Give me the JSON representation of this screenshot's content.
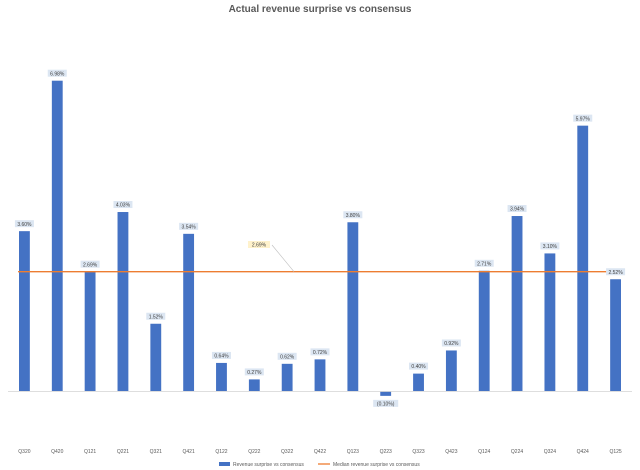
{
  "chart_data": {
    "type": "bar",
    "title": "Actual revenue surprise vs consensus",
    "categories": [
      "Q320",
      "Q420",
      "Q121",
      "Q221",
      "Q321",
      "Q421",
      "Q122",
      "Q222",
      "Q322",
      "Q422",
      "Q123",
      "Q223",
      "Q323",
      "Q423",
      "Q124",
      "Q224",
      "Q324",
      "Q424",
      "Q125"
    ],
    "series": [
      {
        "name": "Revenue surprise vs consensus",
        "type": "bar",
        "color": "#4472c4",
        "values": [
          3.6,
          6.98,
          2.69,
          4.03,
          1.52,
          3.54,
          0.64,
          0.27,
          0.62,
          0.72,
          3.8,
          -0.1,
          0.4,
          0.92,
          2.71,
          3.94,
          3.1,
          5.97,
          2.52
        ],
        "labels": [
          "3.60%",
          "6.98%",
          "2.69%",
          "4.03%",
          "1.52%",
          "3.54%",
          "0.64%",
          "0.27%",
          "0.62%",
          "0.72%",
          "3.80%",
          "(0.10%)",
          "0.40%",
          "0.92%",
          "2.71%",
          "3.94%",
          "3.10%",
          "5.97%",
          "2.52%"
        ]
      },
      {
        "name": "Median revenue surprise vs consensus",
        "type": "line",
        "color": "#ed7d31",
        "value": 2.69,
        "label": "2.69%"
      }
    ],
    "ylim": [
      -0.35,
      7.4
    ],
    "legend_position": "bottom",
    "grid": false
  }
}
